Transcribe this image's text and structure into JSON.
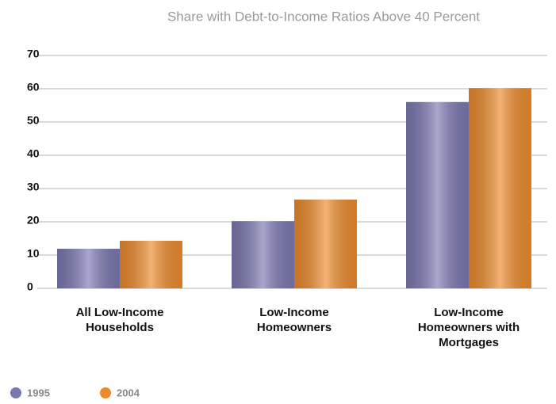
{
  "chart_data": {
    "type": "bar",
    "subtitle": "Share with Debt-to-Income Ratios Above 40 Percent",
    "categories": [
      "All Low-Income\nHouseholds",
      "Low-Income\nHomeowners",
      "Low-Income\nHomeowners with\nMortgages"
    ],
    "series": [
      {
        "name": "1995",
        "color": "#7b78b0",
        "values": [
          11.9,
          20.2,
          56.0
        ]
      },
      {
        "name": "2004",
        "color": "#ec8a2c",
        "values": [
          14.3,
          26.7,
          60.2
        ]
      }
    ],
    "ylim": [
      0,
      70
    ],
    "yticks": [
      0,
      10,
      20,
      30,
      40,
      50,
      60,
      70
    ],
    "grid": true,
    "legend": "bottom-left"
  }
}
